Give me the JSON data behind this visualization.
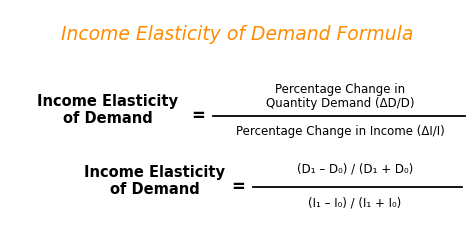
{
  "title": "Income Elasticity of Demand Formula",
  "title_color": "#FF8C00",
  "title_fontsize": 13.5,
  "bg_color": "#FFFFFF",
  "label_color": "#000000",
  "formula_label1": "Income Elasticity\nof Demand",
  "formula_label2": "Income Elasticity\nof Demand",
  "equals": "=",
  "numerator1_line1": "Percentage Change in",
  "numerator1_line2": "Quantity Demand (ΔD/D)",
  "denominator1": "Percentage Change in Income (ΔI/I)",
  "numerator2": "(D₁ – D₀) / (D₁ + D₀)",
  "denominator2": "(I₁ – I₀) / (I₁ + I₀)",
  "text_fontsize": 8.5,
  "label_fontsize": 10.5,
  "equals_fontsize": 12
}
